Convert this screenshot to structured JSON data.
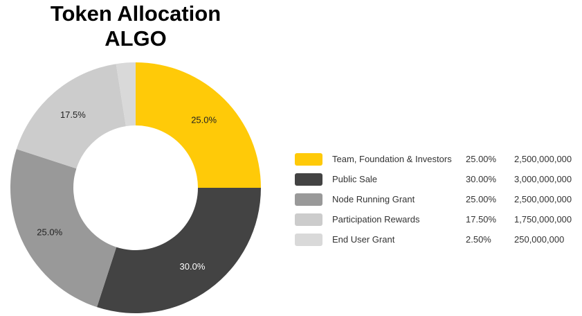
{
  "title": {
    "line1": "Token Allocation",
    "line2": "ALGO"
  },
  "colors": {
    "team": "#FFCA08",
    "public": "#434343",
    "node": "#999999",
    "participation": "#CCCCCC",
    "enduser": "#D9D9D9"
  },
  "legend": [
    {
      "label": "Team, Foundation & Investors",
      "pct": "25.00%",
      "amount": "2,500,000,000",
      "color": "#FFCA08"
    },
    {
      "label": "Public Sale",
      "pct": "30.00%",
      "amount": "3,000,000,000",
      "color": "#434343"
    },
    {
      "label": "Node Running Grant",
      "pct": "25.00%",
      "amount": "2,500,000,000",
      "color": "#999999"
    },
    {
      "label": "Participation Rewards",
      "pct": "17.50%",
      "amount": "1,750,000,000",
      "color": "#CCCCCC"
    },
    {
      "label": "End User Grant",
      "pct": "2.50%",
      "amount": "250,000,000",
      "color": "#D9D9D9"
    }
  ],
  "chart_data": {
    "type": "pie",
    "variant": "donut",
    "title": "Token Allocation ALGO",
    "categories": [
      "Team, Foundation & Investors",
      "Public Sale",
      "Node Running Grant",
      "Participation Rewards",
      "End User Grant"
    ],
    "values": [
      25.0,
      30.0,
      25.0,
      17.5,
      2.5
    ],
    "amounts": [
      2500000000,
      3000000000,
      2500000000,
      1750000000,
      250000000
    ],
    "slice_labels": [
      "25.0%",
      "30.0%",
      "25.0%",
      "17.5%",
      ""
    ],
    "colors": [
      "#FFCA08",
      "#434343",
      "#999999",
      "#CCCCCC",
      "#D9D9D9"
    ],
    "legend_position": "right"
  }
}
